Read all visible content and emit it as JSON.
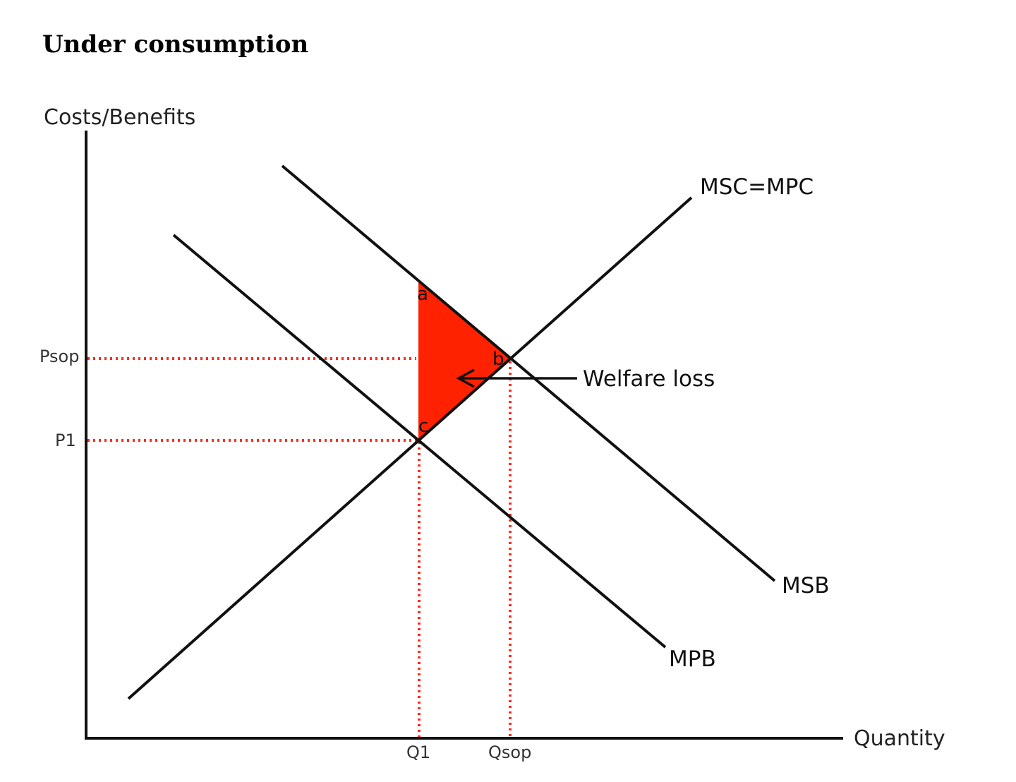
{
  "title": "Under consumption",
  "axes": {
    "y_label": "Costs/Benefits",
    "x_label": "Quantity"
  },
  "curves": {
    "supply": "MSC=MPC",
    "social_benefit": "MSB",
    "private_benefit": "MPB"
  },
  "price_labels": {
    "p_sop": "Psop",
    "p1": "P1"
  },
  "quantity_labels": {
    "q1": "Q1",
    "q_sop": "Qsop"
  },
  "points": {
    "a": "a",
    "b": "b",
    "c": "c"
  },
  "welfare_loss": {
    "label": "Welfare loss",
    "fill_color": "#ff2200"
  },
  "colors": {
    "guide_lines": "#ff2a1a",
    "curves": "#111111"
  }
}
